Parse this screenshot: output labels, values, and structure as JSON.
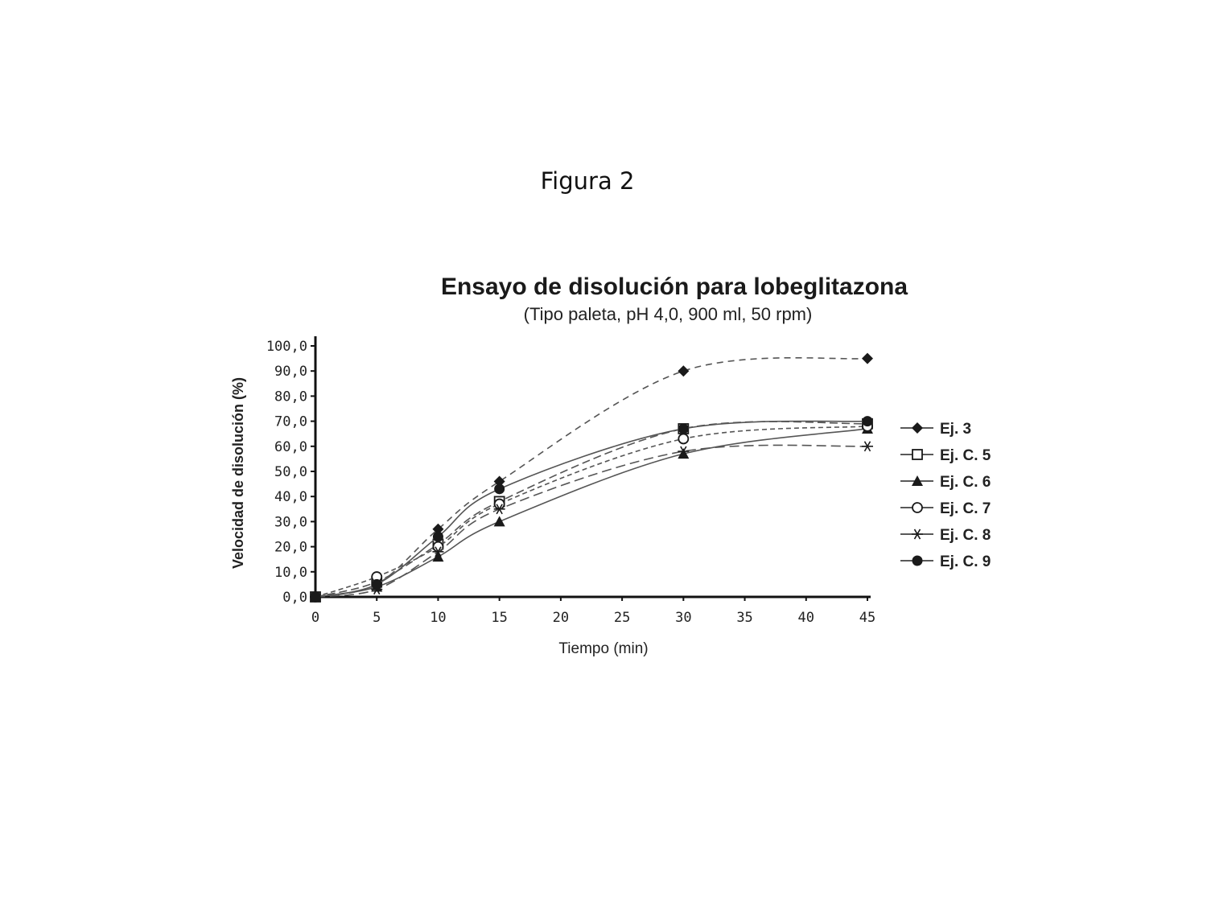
{
  "figure_label": "Figura 2",
  "chart_data": {
    "type": "line",
    "title": "Ensayo de disolución para lobeglitazona",
    "subtitle": "(Tipo paleta, pH 4,0, 900 ml, 50 rpm)",
    "xlabel": "Tiempo (min)",
    "ylabel": "Velocidad de disolución (%)",
    "x": [
      0,
      5,
      10,
      15,
      30,
      45
    ],
    "xticks": [
      "0",
      "5",
      "10",
      "15",
      "20",
      "25",
      "30",
      "35",
      "40",
      "45"
    ],
    "yticks": [
      "0,0",
      "10,0",
      "20,0",
      "30,0",
      "40,0",
      "50,0",
      "60,0",
      "70,0",
      "80,0",
      "90,0",
      "100,0"
    ],
    "ylim": [
      0,
      100
    ],
    "grid": false,
    "legend_position": "right",
    "series": [
      {
        "name": "Ej. 3",
        "marker": "diamond-filled",
        "values": [
          0,
          5,
          27,
          46,
          90,
          95
        ]
      },
      {
        "name": "Ej. C. 5",
        "marker": "square-open",
        "values": [
          0,
          6,
          21,
          38,
          67,
          69
        ]
      },
      {
        "name": "Ej. C. 6",
        "marker": "triangle-filled",
        "values": [
          0,
          4,
          16,
          30,
          57,
          67
        ]
      },
      {
        "name": "Ej. C. 7",
        "marker": "circle-open",
        "values": [
          0,
          8,
          20,
          37,
          63,
          68
        ]
      },
      {
        "name": "Ej. C. 8",
        "marker": "star",
        "values": [
          0,
          3,
          18,
          35,
          58,
          60
        ]
      },
      {
        "name": "Ej. C. 9",
        "marker": "circle-filled",
        "values": [
          0,
          5,
          24,
          43,
          67,
          70
        ]
      }
    ],
    "colors": {
      "line": "#555555",
      "marker": "#1a1a1a",
      "axis": "#111111"
    }
  }
}
